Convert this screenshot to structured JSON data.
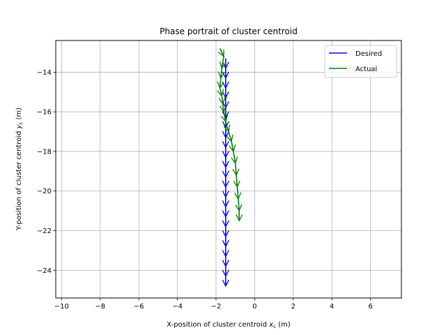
{
  "chart_data": {
    "type": "line",
    "title": "Phase portrait of cluster centroid",
    "xlabel": "X-position of cluster centroid x_c (m)",
    "ylabel": "Y-position of cluster centroid y_c (m)",
    "xlim": [
      -10.3,
      7.6
    ],
    "ylim": [
      -25.4,
      -12.4
    ],
    "xticks": [
      -10,
      -8,
      -6,
      -4,
      -2,
      0,
      2,
      4,
      6
    ],
    "yticks": [
      -24,
      -22,
      -20,
      -18,
      -16,
      -14
    ],
    "grid": true,
    "legend_position": "top-right",
    "series": [
      {
        "name": "Desired",
        "color": "#0000ff",
        "x": [
          -1.5,
          -1.5,
          -1.5,
          -1.5,
          -1.5,
          -1.5,
          -1.5,
          -1.5,
          -1.5,
          -1.5,
          -1.5,
          -1.5,
          -1.5,
          -1.5,
          -1.5,
          -1.5,
          -1.5,
          -1.5,
          -1.5,
          -1.5,
          -1.5,
          -1.5,
          -1.5,
          -1.5,
          -1.5
        ],
        "y": [
          -13.3,
          -13.8,
          -14.3,
          -14.8,
          -15.3,
          -15.8,
          -16.3,
          -16.8,
          -17.3,
          -17.8,
          -18.3,
          -18.8,
          -19.3,
          -19.8,
          -20.3,
          -20.8,
          -21.3,
          -21.8,
          -22.3,
          -22.8,
          -23.3,
          -23.8,
          -24.3,
          -24.8,
          -24.8
        ]
      },
      {
        "name": "Actual",
        "color": "#008000",
        "x": [
          -1.8,
          -1.6,
          -1.7,
          -1.75,
          -1.8,
          -1.7,
          -1.65,
          -1.6,
          -1.5,
          -1.35,
          -1.2,
          -1.1,
          -1.0,
          -0.95,
          -0.9,
          -0.85,
          -0.8,
          -0.8
        ],
        "y": [
          -12.8,
          -13.2,
          -13.8,
          -14.3,
          -14.8,
          -15.2,
          -15.6,
          -16.0,
          -16.5,
          -17.0,
          -17.5,
          -18.0,
          -18.6,
          -19.2,
          -19.8,
          -20.4,
          -21.0,
          -21.5
        ]
      }
    ]
  }
}
